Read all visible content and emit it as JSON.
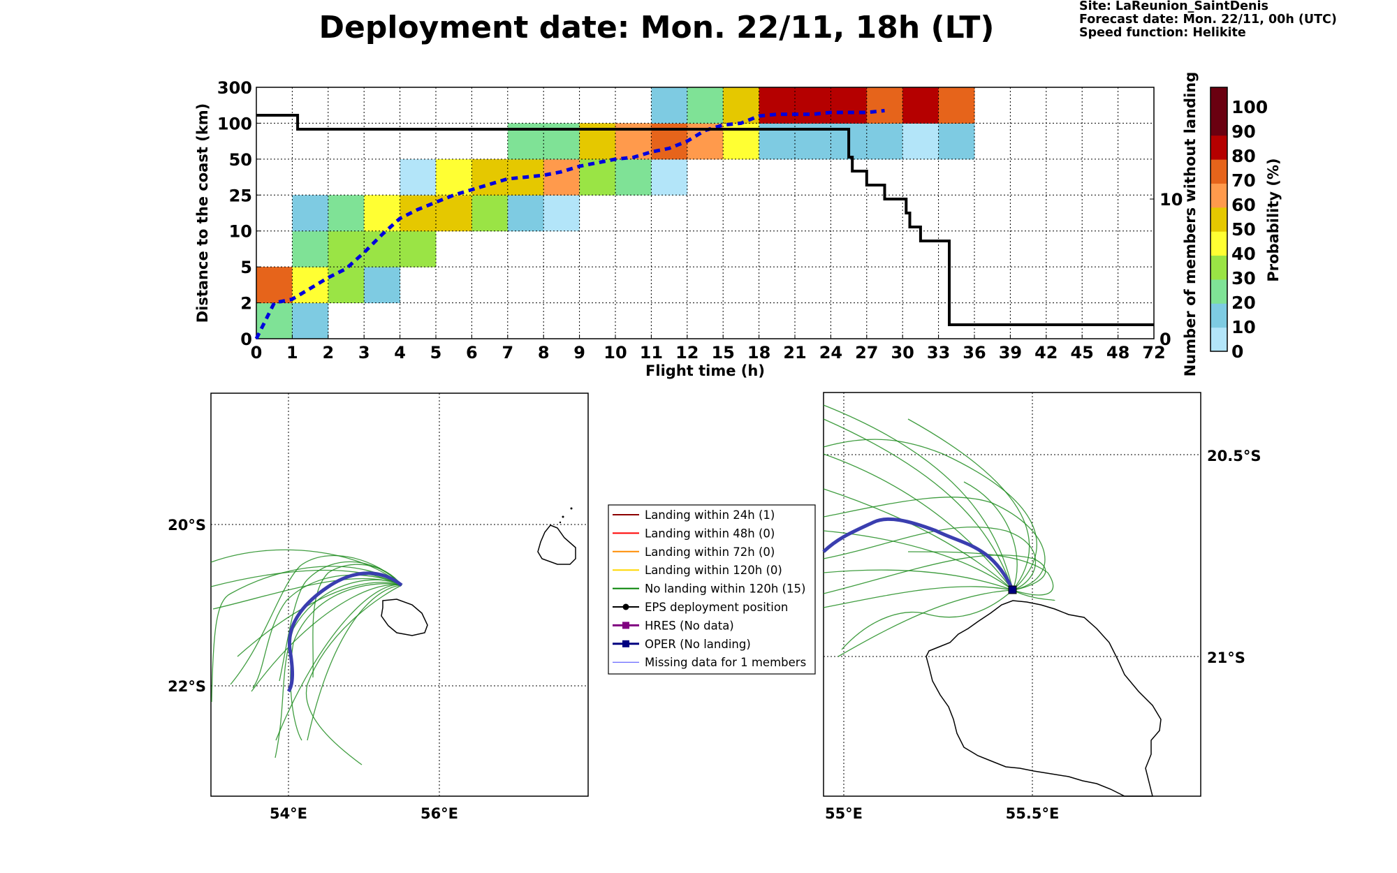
{
  "title": "Deployment date: Mon. 22/11, 18h (LT)",
  "site_info": {
    "site": "Site: LaReunion_SaintDenis",
    "forecast": "Forecast date: Mon. 22/11, 00h (UTC)",
    "speed": "Speed function: Helikite"
  },
  "colors": {
    "prob_bins": [
      "#b3e5f9",
      "#7ecbe2",
      "#7fe296",
      "#9ae445",
      "#ffff33",
      "#e5c800",
      "#ff9a4c",
      "#e6641b",
      "#b50000",
      "#6a0010"
    ],
    "dashed_line": "#0000dd",
    "count_line": "#000000",
    "trajectory": "#1e8c1e",
    "oper_track": "#3a3eaf"
  },
  "chart_data": [
    {
      "type": "heatmap",
      "title": "Deployment date: Mon. 22/11, 18h (LT)",
      "xlabel": "Flight time (h)",
      "ylabel": "Distance to the coast (km)",
      "ylabel_right": "Number of members without landing",
      "colorbar_label": "Probability (%)",
      "x_ticks": [
        "0",
        "1",
        "2",
        "3",
        "4",
        "5",
        "6",
        "7",
        "8",
        "9",
        "10",
        "11",
        "12",
        "15",
        "18",
        "21",
        "24",
        "27",
        "30",
        "33",
        "36",
        "39",
        "42",
        "45",
        "48",
        "72"
      ],
      "y_ticks": [
        "0",
        "2",
        "5",
        "10",
        "25",
        "50",
        "100",
        "300"
      ],
      "y_right_ticks": [
        "0",
        "10"
      ],
      "colorbar_ticks": [
        "0",
        "10",
        "20",
        "30",
        "40",
        "50",
        "60",
        "70",
        "80",
        "90",
        "100"
      ],
      "grid": true,
      "cells": [
        {
          "x": 0,
          "y": 0,
          "p": 20
        },
        {
          "x": 0,
          "y": 1,
          "p": 70
        },
        {
          "x": 1,
          "y": 0,
          "p": 10
        },
        {
          "x": 1,
          "y": 1,
          "p": 40
        },
        {
          "x": 1,
          "y": 2,
          "p": 20
        },
        {
          "x": 1,
          "y": 3,
          "p": 10
        },
        {
          "x": 2,
          "y": 1,
          "p": 30
        },
        {
          "x": 2,
          "y": 2,
          "p": 30
        },
        {
          "x": 2,
          "y": 3,
          "p": 20
        },
        {
          "x": 3,
          "y": 1,
          "p": 10
        },
        {
          "x": 3,
          "y": 2,
          "p": 30
        },
        {
          "x": 3,
          "y": 3,
          "p": 40
        },
        {
          "x": 4,
          "y": 2,
          "p": 30
        },
        {
          "x": 4,
          "y": 3,
          "p": 50
        },
        {
          "x": 4,
          "y": 4,
          "p": 0
        },
        {
          "x": 5,
          "y": 3,
          "p": 50
        },
        {
          "x": 5,
          "y": 4,
          "p": 40
        },
        {
          "x": 6,
          "y": 3,
          "p": 30
        },
        {
          "x": 6,
          "y": 4,
          "p": 50
        },
        {
          "x": 7,
          "y": 3,
          "p": 10
        },
        {
          "x": 7,
          "y": 4,
          "p": 50
        },
        {
          "x": 7,
          "y": 5,
          "p": 20
        },
        {
          "x": 8,
          "y": 3,
          "p": 0
        },
        {
          "x": 8,
          "y": 4,
          "p": 60
        },
        {
          "x": 8,
          "y": 5,
          "p": 20
        },
        {
          "x": 9,
          "y": 4,
          "p": 30
        },
        {
          "x": 9,
          "y": 5,
          "p": 50
        },
        {
          "x": 10,
          "y": 4,
          "p": 20
        },
        {
          "x": 10,
          "y": 5,
          "p": 60
        },
        {
          "x": 11,
          "y": 4,
          "p": 0
        },
        {
          "x": 11,
          "y": 5,
          "p": 70
        },
        {
          "x": 11,
          "y": 6,
          "p": 10
        },
        {
          "x": 12,
          "y": 5,
          "p": 60
        },
        {
          "x": 12,
          "y": 6,
          "p": 20
        },
        {
          "x": 13,
          "y": 5,
          "p": 40
        },
        {
          "x": 13,
          "y": 6,
          "p": 50
        },
        {
          "x": 14,
          "y": 5,
          "p": 10
        },
        {
          "x": 14,
          "y": 6,
          "p": 80
        },
        {
          "x": 15,
          "y": 5,
          "p": 10
        },
        {
          "x": 15,
          "y": 6,
          "p": 80
        },
        {
          "x": 16,
          "y": 5,
          "p": 10
        },
        {
          "x": 16,
          "y": 6,
          "p": 80
        },
        {
          "x": 17,
          "y": 5,
          "p": 10
        },
        {
          "x": 17,
          "y": 6,
          "p": 70
        },
        {
          "x": 18,
          "y": 5,
          "p": 0
        },
        {
          "x": 18,
          "y": 6,
          "p": 80
        },
        {
          "x": 19,
          "y": 5,
          "p": 10
        },
        {
          "x": 19,
          "y": 6,
          "p": 70
        }
      ],
      "series": [
        {
          "style": "dashed",
          "x": [
            0,
            0.5,
            1,
            1.5,
            2,
            2.5,
            3,
            3.5,
            4,
            4.5,
            5,
            5.5,
            6,
            6.5,
            7,
            7.5,
            8,
            8.5,
            9,
            9.5,
            10,
            10.5,
            11,
            11.5,
            12,
            12.5,
            13,
            13.5,
            14,
            14.5,
            15,
            15.5,
            16,
            16.5,
            17,
            17.5
          ],
          "y": [
            0,
            1.0,
            1.1,
            1.4,
            1.7,
            1.95,
            2.4,
            2.9,
            3.35,
            3.6,
            3.8,
            4.0,
            4.15,
            4.3,
            4.45,
            4.5,
            4.55,
            4.65,
            4.8,
            4.9,
            5.0,
            5.05,
            5.2,
            5.3,
            5.5,
            5.8,
            5.95,
            6.0,
            6.2,
            6.25,
            6.25,
            6.25,
            6.3,
            6.3,
            6.3,
            6.35
          ]
        },
        {
          "style": "step",
          "axis": "right",
          "x": [
            0,
            1.1,
            1.15,
            16.45,
            16.5,
            16.6,
            17.0,
            17.5,
            18.0,
            18.1,
            18.2,
            18.5,
            19.2,
            19.3
          ],
          "y": [
            16,
            16,
            15,
            15,
            13,
            12,
            11,
            10,
            10,
            9,
            8,
            7,
            7,
            1
          ]
        }
      ]
    },
    {
      "type": "line",
      "xlabel": "",
      "ylabel": "",
      "x_ticks": [
        "54°E",
        "56°E"
      ],
      "y_ticks": [
        "20°S",
        "22°S"
      ],
      "grid": true
    },
    {
      "type": "line",
      "xlabel": "",
      "ylabel": "",
      "x_ticks": [
        "55°E",
        "55.5°E"
      ],
      "y_ticks": [
        "20.5°S",
        "21°S"
      ],
      "grid": true
    }
  ],
  "legend": {
    "items": [
      {
        "label": "Landing within 24h (1)",
        "color": "#8b0000",
        "marker": "none",
        "lw": 2
      },
      {
        "label": "Landing within 48h (0)",
        "color": "#ff0000",
        "marker": "none",
        "lw": 2
      },
      {
        "label": "Landing within 72h (0)",
        "color": "#ff8c00",
        "marker": "none",
        "lw": 2
      },
      {
        "label": "Landing within 120h (0)",
        "color": "#ffd700",
        "marker": "none",
        "lw": 2
      },
      {
        "label": "No landing within 120h (15)",
        "color": "#008000",
        "marker": "none",
        "lw": 2
      },
      {
        "label": "EPS deployment position",
        "color": "#000000",
        "marker": "circle",
        "lw": 2
      },
      {
        "label": "HRES (No data)",
        "color": "#800080",
        "marker": "square",
        "lw": 3
      },
      {
        "label": "OPER (No landing)",
        "color": "#000080",
        "marker": "square",
        "lw": 3
      },
      {
        "label": "Missing data for 1 members",
        "color": "#4040ff",
        "marker": "none",
        "lw": 1
      }
    ]
  }
}
